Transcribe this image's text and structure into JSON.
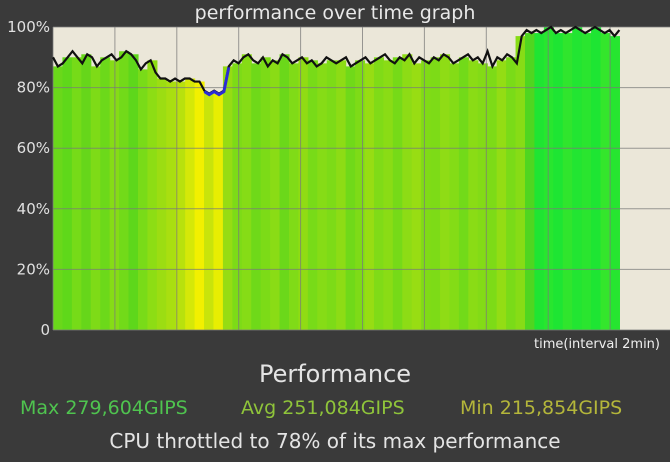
{
  "chart_data": {
    "type": "area",
    "title": "performance over time graph",
    "xlabel": "time(interval 2min)",
    "ylabel": "",
    "ylim": [
      0,
      100
    ],
    "y_ticks": [
      "0",
      "20%",
      "40%",
      "60%",
      "80%",
      "100%"
    ],
    "y_tick_values": [
      0,
      20,
      40,
      60,
      80,
      100
    ],
    "x_segments": 10,
    "grid": true,
    "colors": {
      "plot_background": "#ebe7d9",
      "line": "#111111",
      "throttle_marker": "#2b2bd6",
      "gridline": "#7a7a7a"
    },
    "series": [
      {
        "values": [
          90,
          87,
          88,
          90,
          92,
          90,
          88,
          91,
          90,
          87,
          89,
          90,
          91,
          89,
          90,
          92,
          91,
          89,
          86,
          88,
          89,
          85,
          83,
          83,
          82,
          83,
          82,
          83,
          83,
          82,
          82,
          79,
          78,
          79,
          78,
          79,
          87,
          89,
          88,
          90,
          91,
          89,
          88,
          90,
          87,
          89,
          88,
          91,
          90,
          88,
          89,
          90,
          88,
          89,
          87,
          88,
          90,
          89,
          88,
          89,
          90,
          87,
          88,
          89,
          90,
          88,
          89,
          90,
          91,
          89,
          88,
          90,
          89,
          91,
          88,
          90,
          89,
          88,
          90,
          89,
          91,
          90,
          88,
          89,
          90,
          91,
          89,
          90,
          88,
          92,
          87,
          90,
          89,
          91,
          90,
          88,
          97,
          99,
          98,
          99,
          98,
          99,
          100,
          98,
          99,
          98,
          99,
          100,
          99,
          98,
          99,
          100,
          99,
          98,
          99,
          97,
          99
        ]
      }
    ],
    "throttle_region": [
      31,
      36
    ],
    "bands": [
      "#6ad81a",
      "#5fd81a",
      "#76db18",
      "#66d61a",
      "#7edb17",
      "#6cd91a",
      "#86dc16",
      "#72da19",
      "#5ed71b",
      "#79db18",
      "#8ddd14",
      "#9cdd12",
      "#a9df10",
      "#b8e10d",
      "#d5e808",
      "#f2f000",
      "#c9e40b",
      "#e8ee02",
      "#96dc13",
      "#7ddb17",
      "#86dc16",
      "#6fd919",
      "#7cdb17",
      "#8adc15",
      "#6bd81a",
      "#80db17",
      "#90dc14",
      "#78db18",
      "#86dc16",
      "#7ddb17",
      "#8ddc15",
      "#70d919",
      "#7edb17",
      "#97dd13",
      "#80db17",
      "#8adc15",
      "#76da18",
      "#8ddc15",
      "#98dd13",
      "#80db17",
      "#7ddb17",
      "#8fdc15",
      "#84dc16",
      "#72da19",
      "#8adc15",
      "#83db16",
      "#7ddb17",
      "#93dd14",
      "#7adb18",
      "#87dc16",
      "#4fd620",
      "#1fe532",
      "#28e62f",
      "#1ee533",
      "#30e52d",
      "#22e532",
      "#2ae52f",
      "#1ee533",
      "#34e62c",
      "#26e530"
    ]
  },
  "summary": {
    "heading": "Performance",
    "max": "Max 279,604GIPS",
    "avg": "Avg 251,084GIPS",
    "min": "Min 215,854GIPS",
    "throttle": "CPU throttled to 78% of its max performance"
  }
}
